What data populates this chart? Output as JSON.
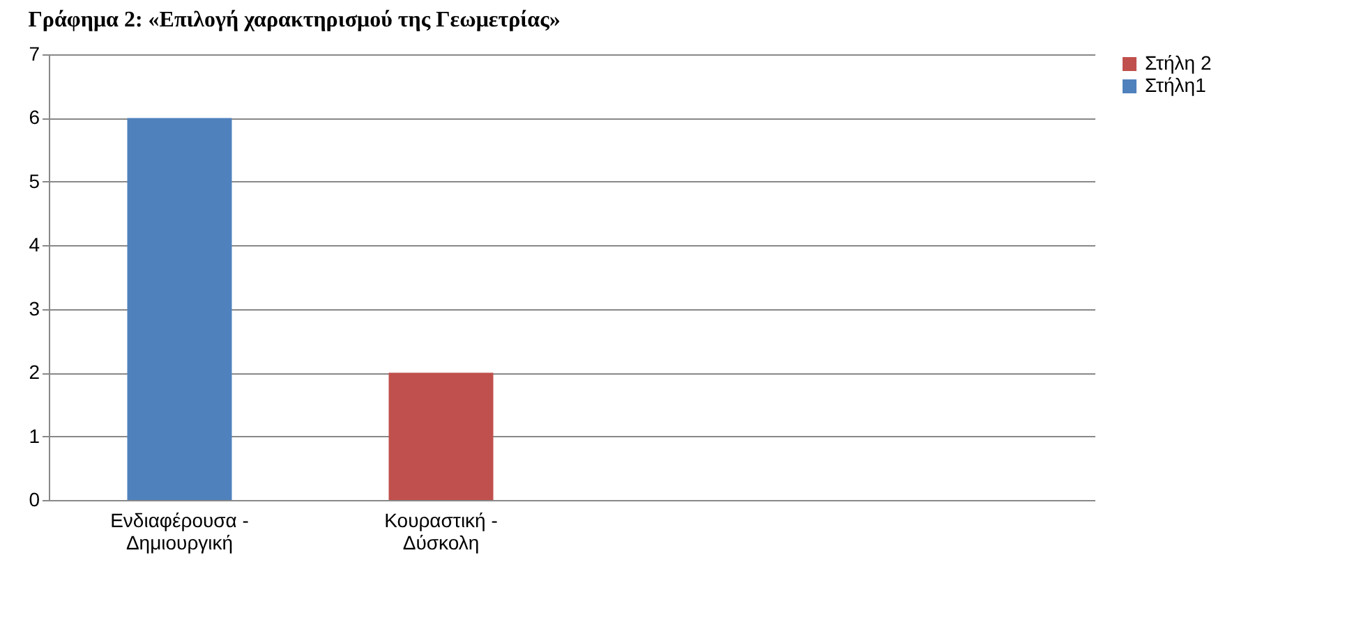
{
  "chart_data": {
    "type": "bar",
    "title": "Γράφημα 2: «Επιλογή χαρακτηρισμού της Γεωμετρίας»",
    "categories": [
      "Ενδιαφέρουσα - Δημιουργική",
      "Κουραστική - Δύσκολη",
      null,
      null
    ],
    "series": [
      {
        "name": "Στήλη 2",
        "color": "#c0504d",
        "values": [
          null,
          2,
          null,
          null
        ]
      },
      {
        "name": "Στήλη1",
        "color": "#4f81bd",
        "values": [
          6,
          null,
          null,
          null
        ]
      }
    ],
    "ylim": [
      0,
      7
    ],
    "yticks": [
      0,
      1,
      2,
      3,
      4,
      5,
      6,
      7
    ],
    "grid": "y",
    "legend": "right"
  }
}
